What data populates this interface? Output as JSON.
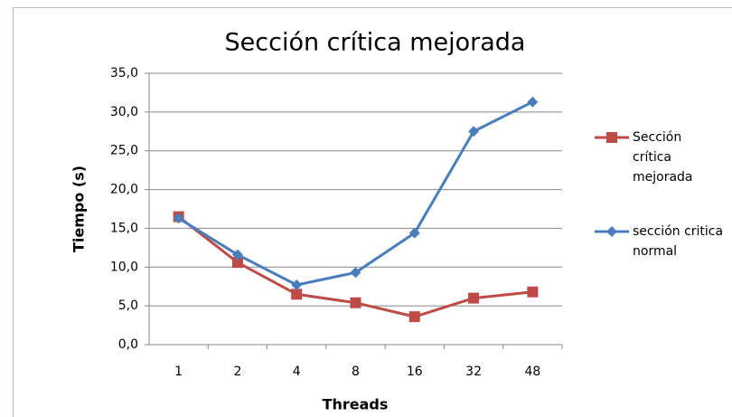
{
  "chart_data": {
    "type": "line",
    "title": "Sección crítica mejorada",
    "xlabel": "Threads",
    "ylabel": "Tiempo (s)",
    "categories": [
      "1",
      "2",
      "4",
      "8",
      "16",
      "32",
      "48"
    ],
    "series": [
      {
        "name": "Sección crítica mejorada",
        "color": "#be4b48",
        "marker": "square",
        "values": [
          16.5,
          10.6,
          6.5,
          5.4,
          3.6,
          6.0,
          6.8
        ]
      },
      {
        "name": "sección critica normal",
        "color": "#4a7ebb",
        "marker": "diamond",
        "values": [
          16.3,
          11.6,
          7.7,
          9.3,
          14.4,
          27.5,
          31.3
        ]
      }
    ],
    "ylim": [
      0,
      35
    ],
    "yticks": [
      {
        "value": 0,
        "label": "0,0"
      },
      {
        "value": 5,
        "label": "5,0"
      },
      {
        "value": 10,
        "label": "10,0"
      },
      {
        "value": 15,
        "label": "15,0"
      },
      {
        "value": 20,
        "label": "20,0"
      },
      {
        "value": 25,
        "label": "25,0"
      },
      {
        "value": 30,
        "label": "30,0"
      },
      {
        "value": 35,
        "label": "35,0"
      }
    ],
    "grid": true,
    "legend": "right"
  }
}
